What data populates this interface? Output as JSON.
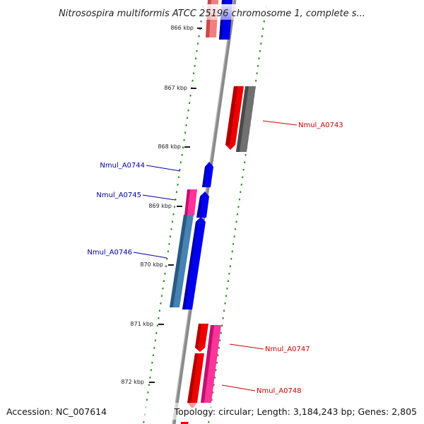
{
  "title": "Nitrosospira multiformis ATCC 25196 chromosome 1, complete s...",
  "footer": {
    "accession": "Accession: NC_007614",
    "topology": "Topology: circular; Length: 3,184,243 bp; Genes: 2,805"
  },
  "ticks": [
    "866 kbp",
    "867 kbp",
    "868 kbp",
    "869 kbp",
    "870 kbp",
    "871 kbp",
    "872 kbp"
  ],
  "genes": [
    {
      "label": "Nmul_A0743",
      "strand": "reverse",
      "color": "#cc0000"
    },
    {
      "label": "Nmul_A0744",
      "strand": "forward",
      "color": "#0000aa"
    },
    {
      "label": "Nmul_A0745",
      "strand": "forward",
      "color": "#0000aa"
    },
    {
      "label": "Nmul_A0746",
      "strand": "forward",
      "color": "#0000aa"
    },
    {
      "label": "Nmul_A0747",
      "strand": "reverse",
      "color": "#cc0000"
    },
    {
      "label": "Nmul_A0748",
      "strand": "reverse",
      "color": "#cc0000"
    }
  ],
  "colors": {
    "backbone": "#8a8a8a",
    "forward_cds": "#0000ee",
    "reverse_cds": "#ee0000",
    "gene_pink": "#ff3399",
    "gene_steelblue": "#4682b4",
    "gene_gray": "#707070",
    "gene_light_red": "#f08080",
    "dots": "#2e8b22"
  }
}
